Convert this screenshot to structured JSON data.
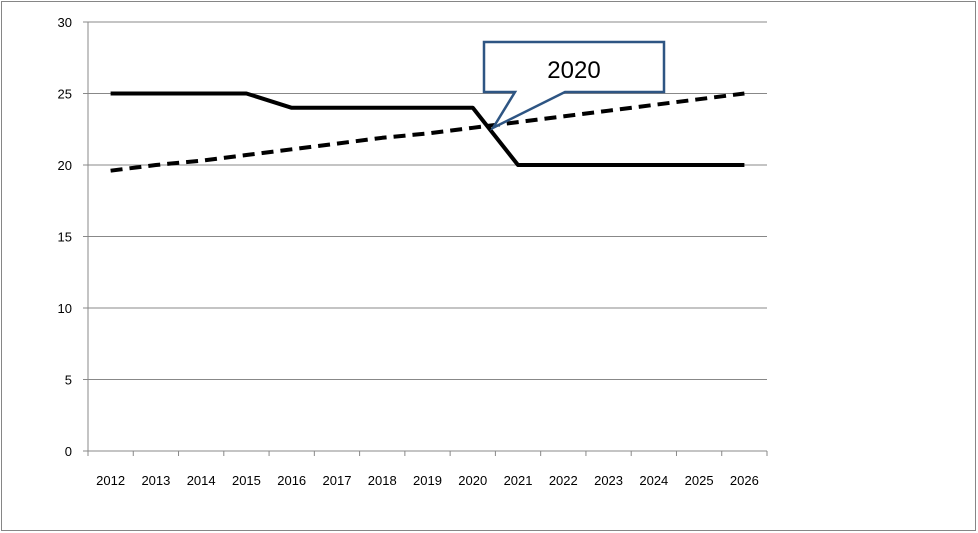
{
  "chart_data": {
    "type": "line",
    "x": [
      "2012",
      "2013",
      "2014",
      "2015",
      "2016",
      "2017",
      "2018",
      "2019",
      "2020",
      "2021",
      "2022",
      "2023",
      "2024",
      "2025",
      "2026"
    ],
    "series": [
      {
        "values": [
          25,
          25,
          25,
          25,
          24,
          24,
          24,
          24,
          24,
          20,
          20,
          20,
          20,
          20,
          20
        ],
        "style": "solid"
      },
      {
        "values": [
          19.6,
          20.0,
          20.3,
          20.7,
          21.1,
          21.5,
          21.9,
          22.2,
          22.6,
          23.0,
          23.4,
          23.8,
          24.2,
          24.6,
          25.0
        ],
        "style": "dashed"
      }
    ],
    "ylim": [
      0,
      30
    ],
    "yticks": [
      0,
      5,
      10,
      15,
      20,
      25,
      30
    ],
    "grid": true,
    "annotation": {
      "text": "2020",
      "points_to_x": "2020"
    },
    "colors": {
      "solid": "#000000",
      "dashed": "#000000",
      "callout_border": "#2e5583",
      "grid": "#888888"
    }
  }
}
